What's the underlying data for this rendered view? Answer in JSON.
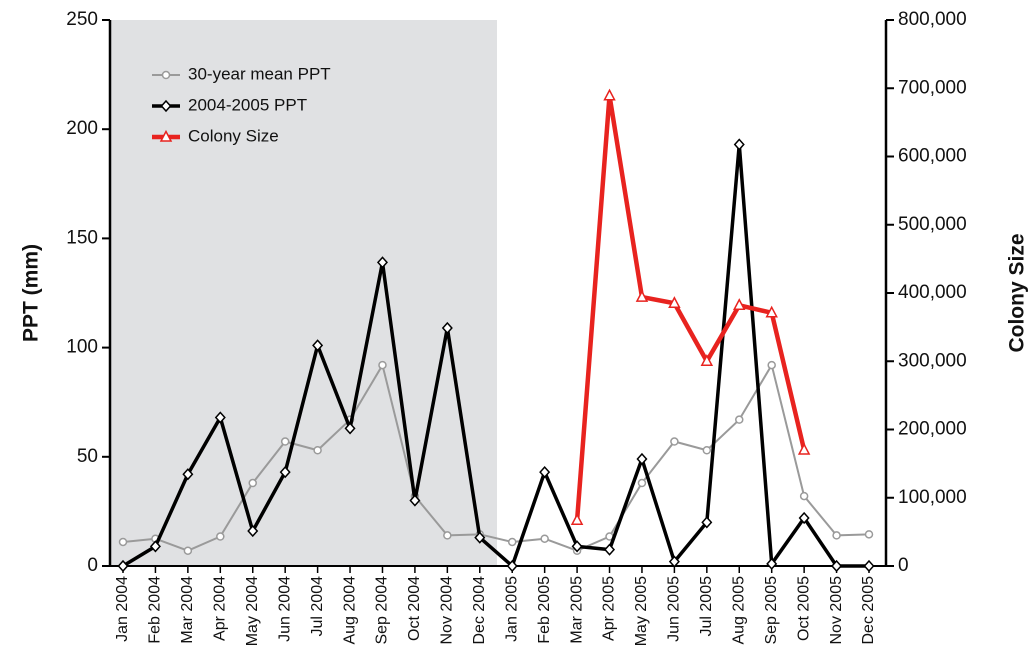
{
  "chart_data": {
    "type": "line",
    "y_label": "PPT (mm)",
    "y2_label": "Colony Size",
    "categories": [
      "Jan 2004",
      "Feb 2004",
      "Mar 2004",
      "Apr 2004",
      "May 2004",
      "Jun 2004",
      "Jul 2004",
      "Aug 2004",
      "Sep 2004",
      "Oct 2004",
      "Nov 2004",
      "Dec 2004",
      "Jan 2005",
      "Feb 2005",
      "Mar 2005",
      "Apr 2005",
      "May 2005",
      "Jun 2005",
      "Jul 2005",
      "Aug 2005",
      "Sep 2005",
      "Oct 2005",
      "Nov 2005",
      "Dec 2005"
    ],
    "series": [
      {
        "name": "30-year mean PPT",
        "color": "#9a9a9a",
        "marker": "circle",
        "values": [
          11,
          12.5,
          7,
          13.5,
          38,
          57,
          53,
          67,
          92,
          32,
          14,
          14.5,
          11,
          12.5,
          7,
          13.5,
          38,
          57,
          53,
          67,
          92,
          32,
          14,
          14.5
        ]
      },
      {
        "name": "2004-2005 PPT",
        "color": "#000000",
        "marker": "diamond",
        "values": [
          0,
          9,
          42,
          68,
          16,
          43,
          101,
          63,
          139,
          30,
          109,
          13,
          0,
          43,
          9,
          7.5,
          49,
          2,
          20,
          193,
          1,
          22,
          0,
          0
        ]
      },
      {
        "name": "Colony Size",
        "color": "#e8231f",
        "marker": "triangle",
        "axis": "y2",
        "values": [
          null,
          null,
          null,
          null,
          null,
          null,
          null,
          null,
          null,
          null,
          null,
          null,
          null,
          null,
          67000,
          689000,
          394000,
          385000,
          300000,
          382000,
          371000,
          170000,
          null,
          null
        ]
      }
    ],
    "ylim": [
      0,
      250
    ],
    "yticks": [
      0,
      50,
      100,
      150,
      200,
      250
    ],
    "y2lim": [
      0,
      800000
    ],
    "y2ticks": [
      0,
      {
        "value": 100000,
        "label": "100,000"
      },
      {
        "value": 200000,
        "label": "200,000"
      },
      {
        "value": 300000,
        "label": "300,000"
      },
      {
        "value": 400000,
        "label": "400,000"
      },
      {
        "value": 500000,
        "label": "500,000"
      },
      {
        "value": 600000,
        "label": "600,000"
      },
      {
        "value": 700000,
        "label": "700,000"
      },
      {
        "value": 800000,
        "label": "800,000"
      }
    ],
    "legend": "upper left"
  }
}
